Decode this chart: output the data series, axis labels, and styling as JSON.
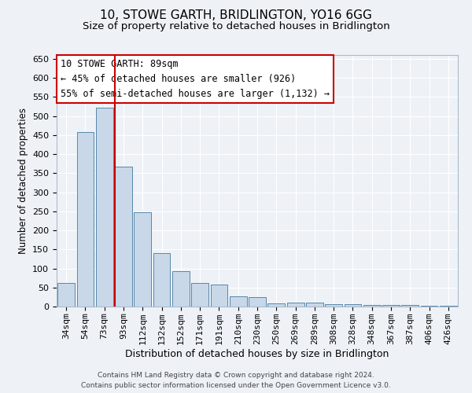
{
  "title": "10, STOWE GARTH, BRIDLINGTON, YO16 6GG",
  "subtitle": "Size of property relative to detached houses in Bridlington",
  "xlabel": "Distribution of detached houses by size in Bridlington",
  "ylabel": "Number of detached properties",
  "footer_line1": "Contains HM Land Registry data © Crown copyright and database right 2024.",
  "footer_line2": "Contains public sector information licensed under the Open Government Licence v3.0.",
  "annotation_title": "10 STOWE GARTH: 89sqm",
  "annotation_line1": "← 45% of detached houses are smaller (926)",
  "annotation_line2": "55% of semi-detached houses are larger (1,132) →",
  "bar_labels": [
    "34sqm",
    "54sqm",
    "73sqm",
    "93sqm",
    "112sqm",
    "132sqm",
    "152sqm",
    "171sqm",
    "191sqm",
    "210sqm",
    "230sqm",
    "250sqm",
    "269sqm",
    "289sqm",
    "308sqm",
    "328sqm",
    "348sqm",
    "367sqm",
    "387sqm",
    "406sqm",
    "426sqm"
  ],
  "bar_values": [
    62,
    457,
    522,
    368,
    248,
    140,
    92,
    61,
    57,
    26,
    25,
    8,
    10,
    11,
    7,
    6,
    5,
    4,
    5,
    3,
    2
  ],
  "bar_color": "#c8d8e8",
  "bar_edge_color": "#5588aa",
  "vline_color": "#cc0000",
  "vline_x_index": 2.55,
  "annotation_box_color": "#cc0000",
  "annotation_box_fill": "#ffffff",
  "background_color": "#eef2f7",
  "grid_color": "#ffffff",
  "ylim": [
    0,
    660
  ],
  "yticks": [
    0,
    50,
    100,
    150,
    200,
    250,
    300,
    350,
    400,
    450,
    500,
    550,
    600,
    650
  ],
  "title_fontsize": 11,
  "subtitle_fontsize": 9.5,
  "xlabel_fontsize": 9,
  "ylabel_fontsize": 8.5,
  "tick_fontsize": 8,
  "annotation_fontsize": 8.5,
  "footer_fontsize": 6.5
}
